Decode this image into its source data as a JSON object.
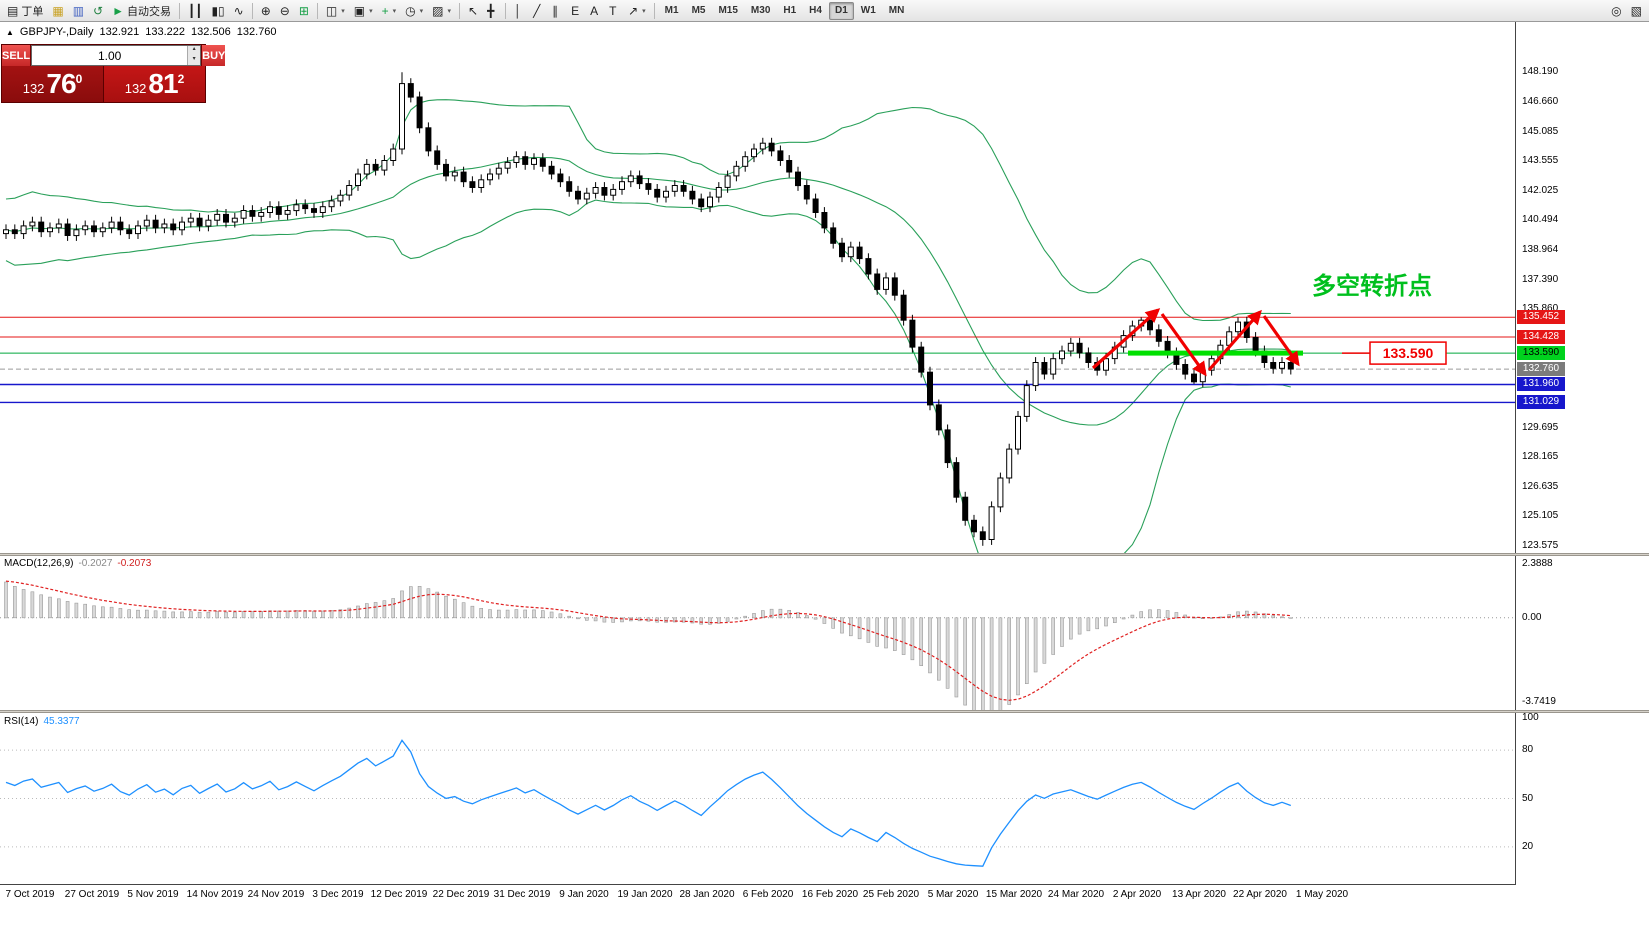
{
  "icons": {
    "one_click_toggle": "▲",
    "spin_up": "▴",
    "spin_down": "▾"
  },
  "toolbar": {
    "items": [
      {
        "name": "new-order-button",
        "glyph": "▤",
        "label": "丁单"
      },
      {
        "name": "market-watch-button",
        "glyph": "▦",
        "accent": "#c8a020"
      },
      {
        "name": "data-window-button",
        "glyph": "▥",
        "accent": "#4060c0"
      },
      {
        "name": "navigator-button",
        "glyph": "↺",
        "accent": "#208040"
      },
      {
        "name": "autotrading-button",
        "glyph": "►",
        "label": "自动交易",
        "accent": "#18a048"
      },
      {
        "sep": true
      },
      {
        "name": "bar-chart-button",
        "glyph": "┃┃"
      },
      {
        "name": "candlestick-chart-button",
        "glyph": "▮▯"
      },
      {
        "name": "line-chart-button",
        "glyph": "∿"
      },
      {
        "sep": true
      },
      {
        "name": "zoom-in-button",
        "glyph": "⊕"
      },
      {
        "name": "zoom-out-button",
        "glyph": "⊖"
      },
      {
        "name": "tile-windows-button",
        "glyph": "⊞",
        "accent": "#18a048"
      },
      {
        "sep": true
      },
      {
        "name": "auto-scroll-button",
        "glyph": "◫",
        "dropdown": true
      },
      {
        "name": "chart-shift-button",
        "glyph": "▣",
        "dropdown": true
      },
      {
        "name": "add-indicator-button",
        "glyph": "+",
        "dropdown": true,
        "accent": "#18a048"
      },
      {
        "name": "period-button",
        "glyph": "◷",
        "dropdown": true
      },
      {
        "name": "template-button",
        "glyph": "▨",
        "dropdown": true
      },
      {
        "sep": true
      },
      {
        "name": "cursor-button",
        "glyph": "↖"
      },
      {
        "name": "crosshair-button",
        "glyph": "╋"
      },
      {
        "sep": true
      },
      {
        "name": "vertical-line-button",
        "glyph": "│"
      },
      {
        "name": "trendline-button",
        "glyph": "╱"
      },
      {
        "name": "equidistant-channel-button",
        "glyph": "∥"
      },
      {
        "name": "elliott-wave-button",
        "glyph": "E"
      },
      {
        "name": "text-button",
        "glyph": "A"
      },
      {
        "name": "text-label-button",
        "glyph": "T"
      },
      {
        "name": "arrows-button",
        "glyph": "↗",
        "dropdown": true
      },
      {
        "sep": true
      }
    ],
    "timeframes": [
      "M1",
      "M5",
      "M15",
      "M30",
      "H1",
      "H4",
      "D1",
      "W1",
      "MN"
    ],
    "active_timeframe": "D1",
    "right_items": [
      {
        "name": "search-icon",
        "glyph": "◎"
      },
      {
        "name": "new-chart-icon",
        "glyph": "▧"
      }
    ]
  },
  "trade_panel": {
    "sell_label": "SELL",
    "buy_label": "BUY",
    "volume": "1.00",
    "sell_price": {
      "small": "132",
      "big": "76",
      "sup": "0"
    },
    "buy_price": {
      "small": "132",
      "big": "81",
      "sup": "2"
    }
  },
  "annotation": {
    "text": "多空转折点",
    "color": "#00c01e",
    "callout": "133.590",
    "arrows": [
      [
        1093,
        346,
        1158,
        288
      ],
      [
        1162,
        292,
        1205,
        352
      ],
      [
        1209,
        348,
        1260,
        290
      ],
      [
        1264,
        294,
        1298,
        342
      ]
    ]
  },
  "chart_data": {
    "type": "candlestick",
    "symbol_period": "GBPJPY-,Daily",
    "ohlc_display": {
      "open": "132.921",
      "high": "133.222",
      "low": "132.506",
      "close": "132.760"
    },
    "closes": [
      140.0,
      139.8,
      140.2,
      140.4,
      139.9,
      140.1,
      140.3,
      139.7,
      140.0,
      140.2,
      139.9,
      140.1,
      140.4,
      140.0,
      139.8,
      140.2,
      140.5,
      140.1,
      140.3,
      140.0,
      140.4,
      140.6,
      140.2,
      140.5,
      140.8,
      140.4,
      140.6,
      141.0,
      140.7,
      140.9,
      141.2,
      140.8,
      141.0,
      141.3,
      141.1,
      140.9,
      141.2,
      141.5,
      141.8,
      142.3,
      142.9,
      143.4,
      143.1,
      143.6,
      144.2,
      147.6,
      146.9,
      145.3,
      144.1,
      143.4,
      142.8,
      143.0,
      142.5,
      142.2,
      142.6,
      142.9,
      143.2,
      143.5,
      143.8,
      143.4,
      143.7,
      143.3,
      142.9,
      142.5,
      142.0,
      141.6,
      141.9,
      142.2,
      141.8,
      142.1,
      142.5,
      142.8,
      142.4,
      142.1,
      141.7,
      142.0,
      142.3,
      142.0,
      141.6,
      141.2,
      141.7,
      142.2,
      142.8,
      143.3,
      143.8,
      144.2,
      144.5,
      144.1,
      143.6,
      143.0,
      142.3,
      141.6,
      140.9,
      140.1,
      139.3,
      138.6,
      139.1,
      138.5,
      137.7,
      136.9,
      137.5,
      136.6,
      135.3,
      133.9,
      132.6,
      130.9,
      129.6,
      127.9,
      126.1,
      124.9,
      124.3,
      123.9,
      125.6,
      127.1,
      128.6,
      130.3,
      131.9,
      133.1,
      132.5,
      133.3,
      133.7,
      134.1,
      133.6,
      133.1,
      132.7,
      133.3,
      133.9,
      134.5,
      135.0,
      135.3,
      134.8,
      134.2,
      133.6,
      133.0,
      132.5,
      132.1,
      132.7,
      133.3,
      134.0,
      134.7,
      135.2,
      134.4,
      133.7,
      133.1,
      132.8,
      133.1,
      132.76
    ],
    "high_overrides": {
      "45": 148.19,
      "129": 135.45,
      "140": 135.44
    },
    "low_overrides": {
      "111": 123.575,
      "135": 131.99
    },
    "visible_high": 148.19,
    "visible_low": 123.575,
    "overlays": {
      "bollinger_period": 20,
      "bollinger_dev": 2,
      "bollinger_color": "#2aa05a"
    },
    "levels": [
      {
        "price": 135.452,
        "label": "135.452",
        "color": "#e51616",
        "style": "solid",
        "badge": "red"
      },
      {
        "price": 134.428,
        "label": "134.428",
        "color": "#e51616",
        "style": "solid",
        "badge": "red"
      },
      {
        "price": 133.59,
        "label": "133.590",
        "color": "#00a83c",
        "style": "solid",
        "badge": "green",
        "thick_segment": [
          1128,
          1303
        ]
      },
      {
        "price": 132.76,
        "label": "132.760",
        "color": "#9a9a9a",
        "style": "dash",
        "badge": "gray"
      },
      {
        "price": 131.96,
        "label": "131.960",
        "color": "#1717cc",
        "style": "solid",
        "badge": "blue"
      },
      {
        "price": 131.029,
        "label": "131.029",
        "color": "#1717cc",
        "style": "solid",
        "badge": "blue"
      }
    ],
    "y_axis_ticks": [
      "148.190",
      "146.660",
      "145.085",
      "143.555",
      "142.025",
      "140.494",
      "138.964",
      "137.390",
      "135.860",
      "129.695",
      "128.165",
      "126.635",
      "125.105",
      "123.575"
    ],
    "x_axis_dates": [
      "7 Oct 2019",
      "27 Oct 2019",
      "5 Nov 2019",
      "14 Nov 2019",
      "24 Nov 2019",
      "3 Dec 2019",
      "12 Dec 2019",
      "22 Dec 2019",
      "31 Dec 2019",
      "9 Jan 2020",
      "19 Jan 2020",
      "28 Jan 2020",
      "6 Feb 2020",
      "16 Feb 2020",
      "25 Feb 2020",
      "5 Mar 2020",
      "15 Mar 2020",
      "24 Mar 2020",
      "2 Apr 2020",
      "13 Apr 2020",
      "22 Apr 2020",
      "1 May 2020"
    ],
    "macd": {
      "label": "MACD(12,26,9)",
      "main_value": "-0.2027",
      "signal_value": "-0.2073",
      "axis_ticks": [
        "2.3888",
        "0.00",
        "-3.7419"
      ],
      "histogram_color": "#d9d9d9",
      "signal_color": "#e02020"
    },
    "rsi": {
      "label": "RSI(14)",
      "value": "45.3377",
      "axis_ticks": [
        "100",
        "80",
        "50",
        "20"
      ],
      "levels": [
        80,
        50,
        20
      ],
      "line_color": "#1e90ff"
    }
  }
}
